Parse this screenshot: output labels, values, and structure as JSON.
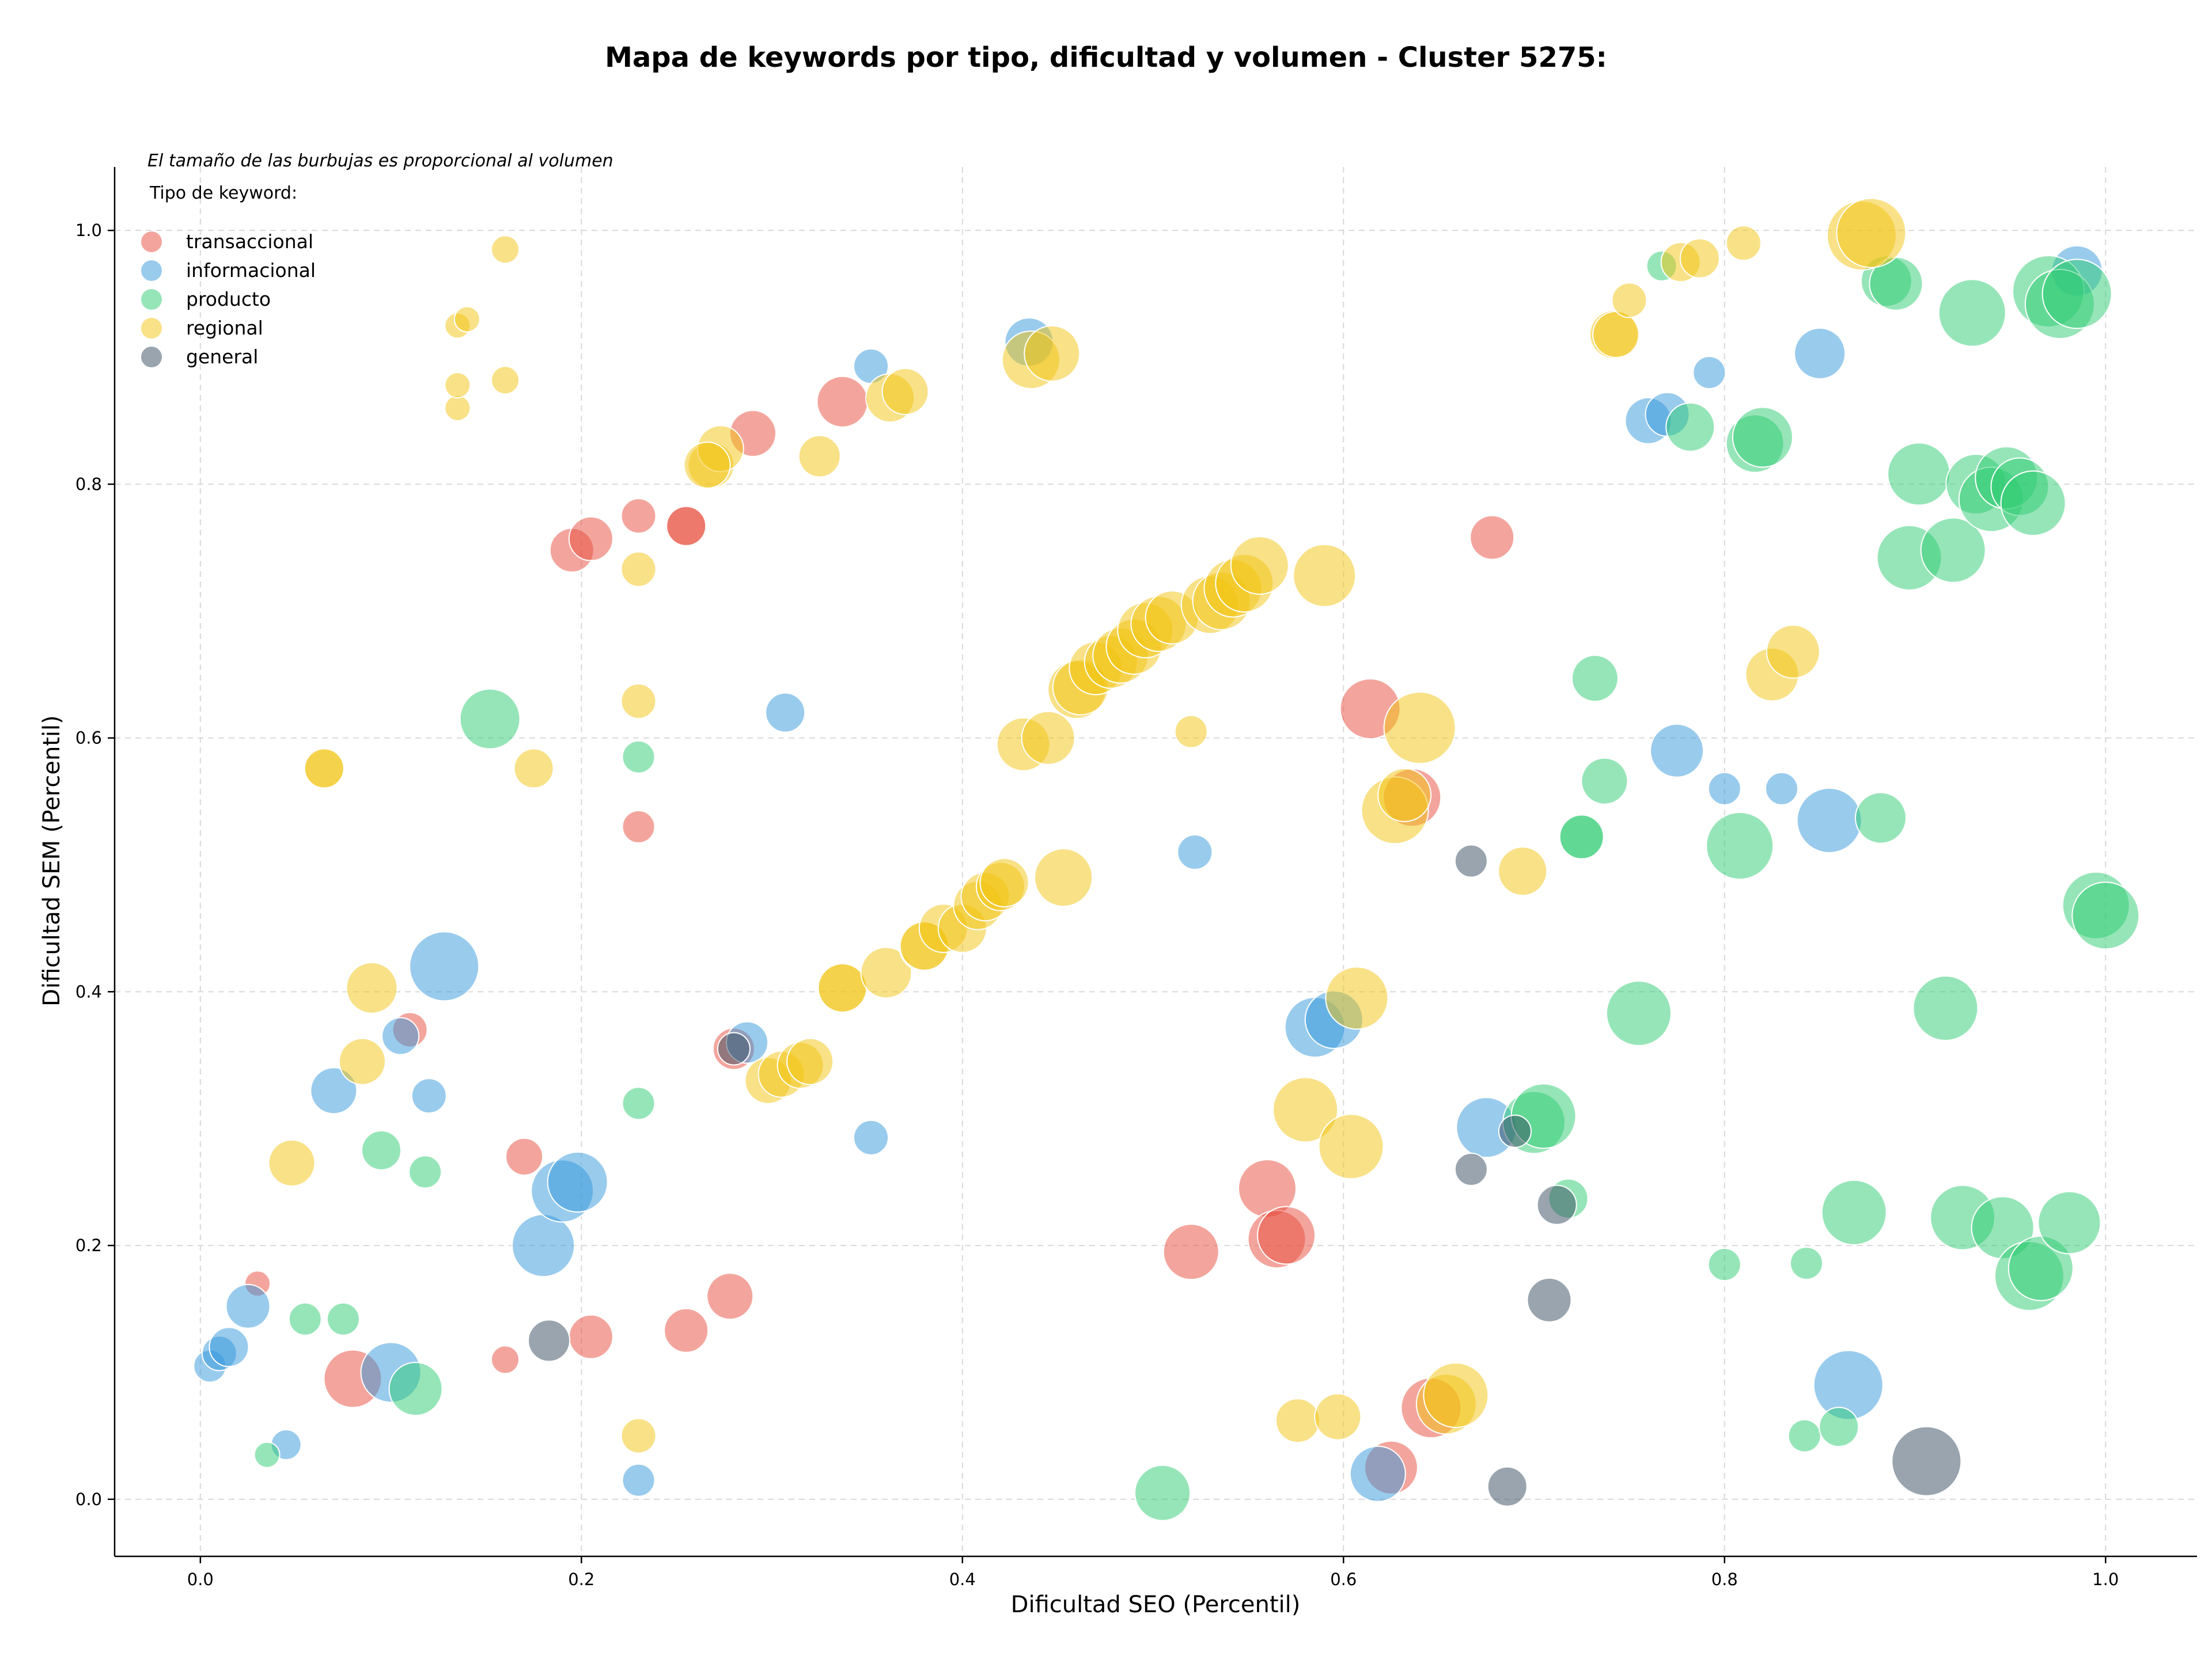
{
  "chart_data": {
    "type": "scatter",
    "title": "Mapa de keywords por tipo, dificultad y volumen - Cluster 5275:",
    "xlabel": "Dificultad SEO (Percentil)",
    "ylabel": "Dificultad SEM (Percentil)",
    "xlim": [
      -0.045,
      1.048
    ],
    "ylim": [
      -0.045,
      1.05
    ],
    "xticks": [
      "0.0",
      "0.2",
      "0.4",
      "0.6",
      "0.8",
      "1.0"
    ],
    "yticks": [
      "0.0",
      "0.2",
      "0.4",
      "0.6",
      "0.8",
      "1.0"
    ],
    "grid": true,
    "size_note": "El tamaño de las burbujas es proporcional al volumen",
    "legend_title": "Tipo de keyword:",
    "legend_position": "top-left",
    "series": [
      {
        "name": "transaccional",
        "color": "#e74c3c",
        "points": [
          [
            0.08,
            0.095,
            50
          ],
          [
            0.03,
            0.17,
            22
          ],
          [
            0.11,
            0.37,
            30
          ],
          [
            0.17,
            0.27,
            32
          ],
          [
            0.16,
            0.11,
            24
          ],
          [
            0.205,
            0.128,
            38
          ],
          [
            0.255,
            0.133,
            38
          ],
          [
            0.278,
            0.16,
            40
          ],
          [
            0.28,
            0.355,
            36
          ],
          [
            0.195,
            0.748,
            38
          ],
          [
            0.205,
            0.757,
            38
          ],
          [
            0.23,
            0.775,
            30
          ],
          [
            0.255,
            0.767,
            36
          ],
          [
            0.255,
            0.767,
            34
          ],
          [
            0.23,
            0.53,
            28
          ],
          [
            0.29,
            0.84,
            40
          ],
          [
            0.337,
            0.865,
            44
          ],
          [
            0.52,
            0.195,
            48
          ],
          [
            0.56,
            0.245,
            50
          ],
          [
            0.565,
            0.205,
            50
          ],
          [
            0.57,
            0.208,
            50
          ],
          [
            0.614,
            0.623,
            52
          ],
          [
            0.625,
            0.025,
            46
          ],
          [
            0.636,
            0.553,
            50
          ],
          [
            0.646,
            0.072,
            52
          ],
          [
            0.678,
            0.758,
            38
          ]
        ]
      },
      {
        "name": "informacional",
        "color": "#3498db",
        "points": [
          [
            0.005,
            0.105,
            28
          ],
          [
            0.01,
            0.115,
            30
          ],
          [
            0.015,
            0.12,
            34
          ],
          [
            0.025,
            0.152,
            38
          ],
          [
            0.045,
            0.043,
            26
          ],
          [
            0.07,
            0.322,
            40
          ],
          [
            0.1,
            0.1,
            52
          ],
          [
            0.105,
            0.365,
            32
          ],
          [
            0.12,
            0.318,
            30
          ],
          [
            0.128,
            0.42,
            60
          ],
          [
            0.18,
            0.2,
            54
          ],
          [
            0.19,
            0.243,
            54
          ],
          [
            0.198,
            0.25,
            52
          ],
          [
            0.23,
            0.015,
            28
          ],
          [
            0.287,
            0.36,
            36
          ],
          [
            0.307,
            0.62,
            34
          ],
          [
            0.352,
            0.893,
            30
          ],
          [
            0.352,
            0.285,
            30
          ],
          [
            0.435,
            0.912,
            42
          ],
          [
            0.522,
            0.51,
            30
          ],
          [
            0.585,
            0.372,
            52
          ],
          [
            0.595,
            0.378,
            50
          ],
          [
            0.618,
            0.02,
            48
          ],
          [
            0.675,
            0.293,
            52
          ],
          [
            0.76,
            0.85,
            40
          ],
          [
            0.77,
            0.855,
            38
          ],
          [
            0.775,
            0.59,
            46
          ],
          [
            0.792,
            0.888,
            28
          ],
          [
            0.8,
            0.56,
            28
          ],
          [
            0.83,
            0.56,
            28
          ],
          [
            0.85,
            0.903,
            44
          ],
          [
            0.855,
            0.535,
            56
          ],
          [
            0.865,
            0.09,
            60
          ],
          [
            0.985,
            0.968,
            44
          ]
        ]
      },
      {
        "name": "producto",
        "color": "#2ecc71",
        "points": [
          [
            0.035,
            0.035,
            22
          ],
          [
            0.055,
            0.142,
            28
          ],
          [
            0.075,
            0.142,
            28
          ],
          [
            0.095,
            0.275,
            34
          ],
          [
            0.113,
            0.087,
            46
          ],
          [
            0.118,
            0.258,
            28
          ],
          [
            0.152,
            0.615,
            52
          ],
          [
            0.23,
            0.585,
            28
          ],
          [
            0.23,
            0.312,
            28
          ],
          [
            0.505,
            0.005,
            48
          ],
          [
            0.7,
            0.297,
            54
          ],
          [
            0.705,
            0.302,
            56
          ],
          [
            0.718,
            0.237,
            34
          ],
          [
            0.725,
            0.522,
            40
          ],
          [
            0.725,
            0.522,
            38
          ],
          [
            0.732,
            0.647,
            40
          ],
          [
            0.737,
            0.566,
            40
          ],
          [
            0.755,
            0.383,
            56
          ],
          [
            0.767,
            0.972,
            26
          ],
          [
            0.782,
            0.845,
            42
          ],
          [
            0.8,
            0.185,
            28
          ],
          [
            0.808,
            0.515,
            58
          ],
          [
            0.816,
            0.832,
            50
          ],
          [
            0.82,
            0.837,
            52
          ],
          [
            0.842,
            0.05,
            28
          ],
          [
            0.843,
            0.186,
            28
          ],
          [
            0.86,
            0.057,
            34
          ],
          [
            0.868,
            0.226,
            56
          ],
          [
            0.882,
            0.537,
            44
          ],
          [
            0.885,
            0.96,
            44
          ],
          [
            0.89,
            0.958,
            46
          ],
          [
            0.897,
            0.742,
            56
          ],
          [
            0.902,
            0.808,
            54
          ],
          [
            0.916,
            0.387,
            56
          ],
          [
            0.92,
            0.748,
            56
          ],
          [
            0.93,
            0.935,
            58
          ],
          [
            0.925,
            0.222,
            56
          ],
          [
            0.932,
            0.8,
            52
          ],
          [
            0.94,
            0.788,
            56
          ],
          [
            0.946,
            0.214,
            54
          ],
          [
            0.948,
            0.805,
            54
          ],
          [
            0.955,
            0.798,
            50
          ],
          [
            0.96,
            0.176,
            60
          ],
          [
            0.962,
            0.785,
            56
          ],
          [
            0.966,
            0.182,
            56
          ],
          [
            0.97,
            0.952,
            62
          ],
          [
            0.976,
            0.942,
            60
          ],
          [
            0.981,
            0.218,
            54
          ],
          [
            0.985,
            0.95,
            60
          ],
          [
            0.995,
            0.468,
            58
          ],
          [
            1.0,
            0.46,
            58
          ]
        ]
      },
      {
        "name": "regional",
        "color": "#f1c40f",
        "points": [
          [
            0.048,
            0.265,
            40
          ],
          [
            0.065,
            0.576,
            34
          ],
          [
            0.065,
            0.576,
            34
          ],
          [
            0.085,
            0.345,
            40
          ],
          [
            0.09,
            0.403,
            44
          ],
          [
            0.135,
            0.925,
            22
          ],
          [
            0.135,
            0.86,
            22
          ],
          [
            0.135,
            0.878,
            22
          ],
          [
            0.14,
            0.93,
            22
          ],
          [
            0.16,
            0.985,
            24
          ],
          [
            0.16,
            0.882,
            24
          ],
          [
            0.175,
            0.576,
            34
          ],
          [
            0.23,
            0.733,
            30
          ],
          [
            0.23,
            0.629,
            30
          ],
          [
            0.23,
            0.05,
            30
          ],
          [
            0.268,
            0.815,
            40
          ],
          [
            0.273,
            0.828,
            40
          ],
          [
            0.266,
            0.815,
            40
          ],
          [
            0.298,
            0.33,
            40
          ],
          [
            0.305,
            0.335,
            40
          ],
          [
            0.315,
            0.342,
            40
          ],
          [
            0.32,
            0.345,
            40
          ],
          [
            0.325,
            0.822,
            36
          ],
          [
            0.337,
            0.403,
            44
          ],
          [
            0.337,
            0.403,
            42
          ],
          [
            0.36,
            0.415,
            44
          ],
          [
            0.362,
            0.868,
            42
          ],
          [
            0.37,
            0.873,
            40
          ],
          [
            0.38,
            0.436,
            44
          ],
          [
            0.38,
            0.436,
            42
          ],
          [
            0.39,
            0.45,
            42
          ],
          [
            0.4,
            0.45,
            42
          ],
          [
            0.408,
            0.468,
            42
          ],
          [
            0.412,
            0.475,
            42
          ],
          [
            0.42,
            0.483,
            42
          ],
          [
            0.422,
            0.486,
            42
          ],
          [
            0.432,
            0.595,
            46
          ],
          [
            0.436,
            0.898,
            50
          ],
          [
            0.445,
            0.6,
            46
          ],
          [
            0.447,
            0.903,
            48
          ],
          [
            0.453,
            0.49,
            50
          ],
          [
            0.46,
            0.638,
            50
          ],
          [
            0.462,
            0.64,
            48
          ],
          [
            0.47,
            0.655,
            46
          ],
          [
            0.478,
            0.66,
            46
          ],
          [
            0.483,
            0.665,
            48
          ],
          [
            0.49,
            0.672,
            48
          ],
          [
            0.496,
            0.685,
            48
          ],
          [
            0.503,
            0.69,
            48
          ],
          [
            0.51,
            0.695,
            46
          ],
          [
            0.52,
            0.605,
            28
          ],
          [
            0.53,
            0.705,
            50
          ],
          [
            0.536,
            0.708,
            50
          ],
          [
            0.542,
            0.718,
            50
          ],
          [
            0.548,
            0.722,
            50
          ],
          [
            0.556,
            0.736,
            50
          ],
          [
            0.576,
            0.062,
            38
          ],
          [
            0.58,
            0.307,
            56
          ],
          [
            0.59,
            0.728,
            54
          ],
          [
            0.597,
            0.065,
            40
          ],
          [
            0.604,
            0.278,
            56
          ],
          [
            0.607,
            0.395,
            54
          ],
          [
            0.627,
            0.543,
            58
          ],
          [
            0.632,
            0.555,
            46
          ],
          [
            0.64,
            0.608,
            62
          ],
          [
            0.654,
            0.075,
            52
          ],
          [
            0.659,
            0.082,
            56
          ],
          [
            0.694,
            0.495,
            42
          ],
          [
            0.742,
            0.918,
            42
          ],
          [
            0.743,
            0.918,
            40
          ],
          [
            0.75,
            0.945,
            30
          ],
          [
            0.777,
            0.975,
            34
          ],
          [
            0.787,
            0.978,
            34
          ],
          [
            0.81,
            0.99,
            30
          ],
          [
            0.825,
            0.65,
            46
          ],
          [
            0.836,
            0.668,
            46
          ],
          [
            0.872,
            0.996,
            60
          ],
          [
            0.877,
            0.998,
            60
          ]
        ]
      },
      {
        "name": "general",
        "color": "#34495e",
        "points": [
          [
            0.183,
            0.125,
            36
          ],
          [
            0.28,
            0.355,
            28
          ],
          [
            0.667,
            0.503,
            28
          ],
          [
            0.667,
            0.26,
            28
          ],
          [
            0.686,
            0.01,
            34
          ],
          [
            0.69,
            0.29,
            28
          ],
          [
            0.712,
            0.232,
            34
          ],
          [
            0.708,
            0.157,
            38
          ],
          [
            0.906,
            0.03,
            60
          ]
        ]
      }
    ]
  }
}
